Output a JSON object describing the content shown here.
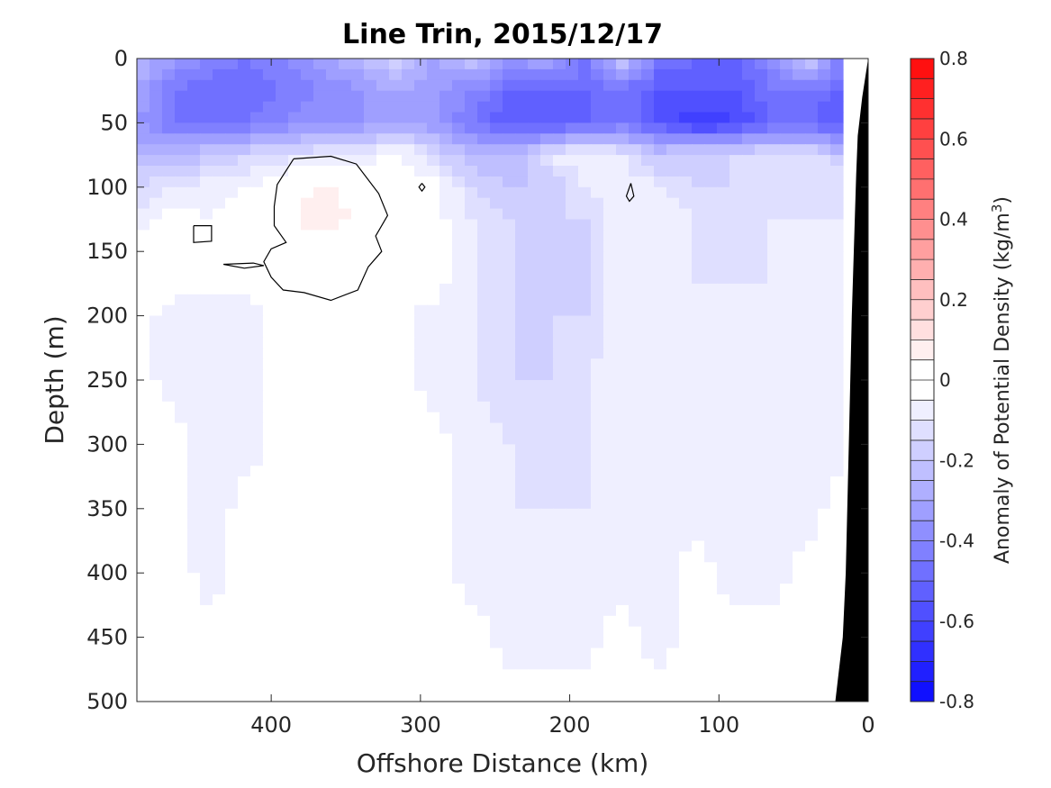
{
  "chart_data": {
    "type": "heatmap",
    "title": "Line Trin, 2015/12/17",
    "xlabel": "Offshore Distance (km)",
    "ylabel": "Depth (m)",
    "xlim": [
      490,
      0
    ],
    "ylim": [
      0,
      500
    ],
    "x_ticks": [
      400,
      300,
      200,
      100,
      0
    ],
    "x_tick_labels": [
      "400",
      "300",
      "200",
      "100",
      "0"
    ],
    "y_ticks": [
      0,
      50,
      100,
      150,
      200,
      250,
      300,
      350,
      400,
      450,
      500
    ],
    "y_tick_labels": [
      "0",
      "50",
      "100",
      "150",
      "200",
      "250",
      "300",
      "350",
      "400",
      "450",
      "500"
    ],
    "colorbar": {
      "label_main": "Anomaly of Potential Density (kg/m",
      "label_sup": "3",
      "label_close": ")",
      "range": [
        -0.8,
        0.8
      ],
      "step": 0.05,
      "negative_color": "#0000ff",
      "positive_color": "#ff0000",
      "ticks": [
        0.8,
        0.6,
        0.4,
        0.2,
        0,
        -0.2,
        -0.4,
        -0.6,
        -0.8
      ],
      "tick_labels": [
        "0.8",
        "0.6",
        "0.4",
        "0.2",
        "0",
        "-0.2",
        "-0.4",
        "-0.6",
        "-0.8"
      ]
    },
    "grid": false,
    "bathymetry_color": "#000000",
    "x_grid_km": [
      490,
      465,
      440,
      415,
      390,
      365,
      340,
      315,
      290,
      265,
      240,
      215,
      190,
      165,
      140,
      115,
      90,
      65,
      40,
      20
    ],
    "z_grid_m": [
      0,
      25,
      50,
      75,
      100,
      125,
      150,
      175,
      200,
      250,
      300,
      350,
      400,
      450,
      500
    ],
    "anomaly": [
      [
        -0.25,
        -0.35,
        -0.4,
        -0.45,
        -0.4,
        -0.3,
        -0.25,
        -0.15,
        -0.3,
        -0.2,
        -0.35,
        -0.3,
        -0.45,
        -0.2,
        -0.45,
        -0.5,
        -0.5,
        -0.4,
        -0.15,
        -0.4
      ],
      [
        -0.3,
        -0.45,
        -0.5,
        -0.5,
        -0.45,
        -0.4,
        -0.35,
        -0.3,
        -0.35,
        -0.4,
        -0.5,
        -0.5,
        -0.5,
        -0.45,
        -0.55,
        -0.55,
        -0.55,
        -0.45,
        -0.45,
        -0.5
      ],
      [
        -0.35,
        -0.45,
        -0.45,
        -0.45,
        -0.4,
        -0.35,
        -0.35,
        -0.3,
        -0.35,
        -0.45,
        -0.55,
        -0.55,
        -0.5,
        -0.45,
        -0.55,
        -0.65,
        -0.6,
        -0.5,
        -0.5,
        -0.55
      ],
      [
        -0.25,
        -0.25,
        -0.2,
        -0.15,
        -0.12,
        -0.1,
        -0.1,
        -0.02,
        -0.15,
        -0.25,
        -0.25,
        -0.1,
        -0.05,
        -0.1,
        -0.2,
        -0.15,
        -0.15,
        -0.1,
        -0.1,
        -0.2
      ],
      [
        -0.15,
        -0.1,
        -0.07,
        -0.05,
        0.02,
        0.07,
        0.02,
        -0.05,
        -0.02,
        -0.15,
        -0.2,
        -0.2,
        -0.1,
        -0.05,
        -0.1,
        -0.15,
        -0.15,
        -0.1,
        -0.1,
        -0.1
      ],
      [
        -0.07,
        -0.03,
        -0.05,
        -0.03,
        0.04,
        0.07,
        0.04,
        -0.03,
        -0.03,
        -0.1,
        -0.15,
        -0.15,
        -0.15,
        -0.07,
        -0.07,
        -0.1,
        -0.15,
        -0.1,
        -0.1,
        -0.1
      ],
      [
        -0.03,
        -0.03,
        -0.03,
        -0.03,
        0.02,
        0.03,
        0.01,
        -0.03,
        -0.03,
        -0.1,
        -0.15,
        -0.15,
        -0.15,
        -0.07,
        -0.07,
        -0.1,
        -0.15,
        -0.1,
        -0.07,
        -0.1
      ],
      [
        -0.03,
        -0.03,
        -0.03,
        -0.03,
        0.0,
        0.01,
        0.0,
        -0.03,
        -0.03,
        -0.1,
        -0.15,
        -0.15,
        -0.15,
        -0.07,
        -0.07,
        -0.1,
        -0.1,
        -0.1,
        -0.07,
        -0.07
      ],
      [
        -0.03,
        -0.07,
        -0.07,
        -0.07,
        -0.03,
        -0.03,
        -0.03,
        -0.03,
        -0.07,
        -0.1,
        -0.15,
        -0.15,
        -0.15,
        -0.07,
        -0.07,
        -0.07,
        -0.1,
        -0.07,
        -0.07,
        -0.07
      ],
      [
        -0.03,
        -0.07,
        -0.07,
        -0.07,
        -0.03,
        -0.03,
        -0.03,
        -0.03,
        -0.07,
        -0.1,
        -0.15,
        -0.15,
        -0.1,
        -0.07,
        -0.07,
        -0.07,
        -0.07,
        -0.07,
        -0.07,
        -0.07
      ],
      [
        -0.03,
        -0.03,
        -0.07,
        -0.07,
        -0.03,
        -0.03,
        -0.03,
        -0.03,
        -0.03,
        -0.07,
        -0.1,
        -0.15,
        -0.1,
        -0.07,
        -0.07,
        -0.07,
        -0.07,
        -0.07,
        -0.07,
        -0.07
      ],
      [
        -0.02,
        -0.03,
        -0.07,
        -0.03,
        -0.03,
        -0.02,
        -0.02,
        -0.02,
        -0.03,
        -0.07,
        -0.1,
        -0.1,
        -0.1,
        -0.07,
        -0.07,
        -0.07,
        -0.07,
        -0.07,
        -0.07,
        -0.03
      ],
      [
        -0.02,
        -0.03,
        -0.07,
        -0.03,
        -0.02,
        -0.02,
        -0.02,
        -0.02,
        -0.03,
        -0.07,
        -0.07,
        -0.07,
        -0.07,
        -0.07,
        -0.07,
        -0.03,
        -0.07,
        -0.07,
        -0.03,
        -0.03
      ],
      [
        -0.02,
        -0.03,
        -0.03,
        -0.03,
        -0.02,
        -0.02,
        -0.02,
        -0.02,
        -0.03,
        -0.03,
        -0.07,
        -0.07,
        -0.07,
        -0.03,
        -0.07,
        -0.03,
        -0.03,
        -0.03,
        -0.03,
        -0.03
      ],
      [
        -0.02,
        -0.02,
        -0.03,
        -0.03,
        -0.02,
        -0.02,
        -0.02,
        -0.02,
        -0.02,
        -0.03,
        -0.03,
        -0.03,
        -0.03,
        -0.03,
        -0.03,
        -0.03,
        -0.03,
        -0.03,
        -0.03,
        -0.03
      ]
    ],
    "zero_contours_km_m": [
      [
        [
          385,
          78
        ],
        [
          360,
          76
        ],
        [
          343,
          82
        ],
        [
          328,
          105
        ],
        [
          322,
          122
        ],
        [
          330,
          138
        ],
        [
          326,
          150
        ],
        [
          335,
          162
        ],
        [
          342,
          180
        ],
        [
          360,
          188
        ],
        [
          378,
          182
        ],
        [
          392,
          180
        ],
        [
          400,
          170
        ],
        [
          405,
          158
        ],
        [
          400,
          148
        ],
        [
          390,
          143
        ],
        [
          398,
          130
        ],
        [
          398,
          115
        ],
        [
          396,
          98
        ],
        [
          385,
          78
        ]
      ],
      [
        [
          452,
          130
        ],
        [
          440,
          130
        ],
        [
          440,
          142
        ],
        [
          452,
          143
        ],
        [
          452,
          130
        ]
      ],
      [
        [
          432,
          160
        ],
        [
          412,
          159
        ],
        [
          405,
          161
        ],
        [
          418,
          163
        ],
        [
          432,
          160
        ]
      ],
      [
        [
          299,
          97
        ],
        [
          297,
          100
        ],
        [
          299,
          103
        ],
        [
          301,
          100
        ],
        [
          299,
          97
        ]
      ],
      [
        [
          159,
          97
        ],
        [
          157,
          107
        ],
        [
          160,
          111
        ],
        [
          162,
          107
        ],
        [
          159,
          97
        ]
      ]
    ],
    "bathymetry_km_m": [
      [
        0,
        0
      ],
      [
        4,
        30
      ],
      [
        7,
        60
      ],
      [
        8,
        90
      ],
      [
        11,
        200
      ],
      [
        13,
        300
      ],
      [
        15,
        400
      ],
      [
        17,
        450
      ],
      [
        22,
        500
      ],
      [
        0,
        500
      ]
    ]
  }
}
